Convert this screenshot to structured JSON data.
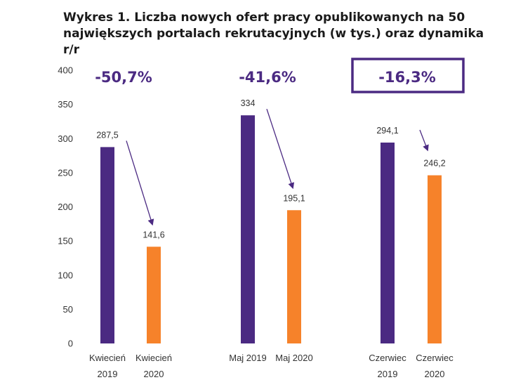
{
  "chart_data": {
    "type": "bar",
    "title_lines": [
      "Wykres 1. Liczba nowych ofert pracy opublikowanych na 50",
      "największych portalach rekrutacyjnych (w tys.) oraz dynamika r/r"
    ],
    "ylim": [
      0,
      400
    ],
    "yticks": [
      "400",
      "350",
      "300",
      "250",
      "200",
      "150",
      "100",
      "50",
      "0"
    ],
    "colors": {
      "y2019": "#4b2a82",
      "y2020": "#f6822a",
      "arrow": "#4b2a82"
    },
    "groups": [
      {
        "change": "-50,7%",
        "highlighted": false,
        "bars": [
          {
            "label_lines": [
              "Kwiecień",
              "2019"
            ],
            "value": 287.5,
            "value_label": "287,5",
            "series": "2019"
          },
          {
            "label_lines": [
              "Kwiecień",
              "2020"
            ],
            "value": 141.6,
            "value_label": "141,6",
            "series": "2020"
          }
        ]
      },
      {
        "change": "-41,6%",
        "highlighted": false,
        "bars": [
          {
            "label_lines": [
              "Maj 2019"
            ],
            "value": 334,
            "value_label": "334",
            "series": "2019"
          },
          {
            "label_lines": [
              "Maj 2020"
            ],
            "value": 195.1,
            "value_label": "195,1",
            "series": "2020"
          }
        ]
      },
      {
        "change": "-16,3%",
        "highlighted": true,
        "bars": [
          {
            "label_lines": [
              "Czerwiec",
              "2019"
            ],
            "value": 294.1,
            "value_label": "294,1",
            "series": "2019"
          },
          {
            "label_lines": [
              "Czerwiec",
              "2020"
            ],
            "value": 246.2,
            "value_label": "246,2",
            "series": "2020"
          }
        ]
      }
    ]
  }
}
